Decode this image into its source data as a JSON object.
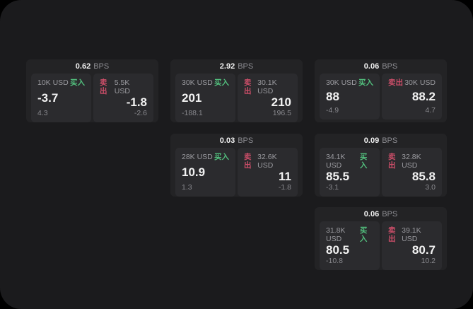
{
  "labels": {
    "bps_unit": "BPS",
    "buy": "买入",
    "sell": "卖出"
  },
  "colors": {
    "page_bg": "#1b1b1d",
    "card_bg": "#232325",
    "panel_bg": "#2b2b2e",
    "buy_green": "#52bf7d",
    "sell_red": "#cc4e69",
    "text_primary": "#f2f2f2",
    "text_muted": "#8d8d92"
  },
  "cards": [
    {
      "bps": "0.62",
      "buy": {
        "amount": "10K USD",
        "price": "-3.7",
        "change": "4.3"
      },
      "sell": {
        "amount": "5.5K USD",
        "price": "-1.8",
        "change": "-2.6"
      }
    },
    {
      "bps": "2.92",
      "buy": {
        "amount": "30K USD",
        "price": "201",
        "change": "-188.1"
      },
      "sell": {
        "amount": "30.1K USD",
        "price": "210",
        "change": "196.5"
      }
    },
    {
      "bps": "0.06",
      "buy": {
        "amount": "30K USD",
        "price": "88",
        "change": "-4.9"
      },
      "sell": {
        "amount": "30K USD",
        "price": "88.2",
        "change": "4.7"
      }
    },
    {
      "bps": "0.03",
      "buy": {
        "amount": "28K USD",
        "price": "10.9",
        "change": "1.3"
      },
      "sell": {
        "amount": "32.6K USD",
        "price": "11",
        "change": "-1.8"
      }
    },
    {
      "bps": "0.09",
      "buy": {
        "amount": "34.1K USD",
        "price": "85.5",
        "change": "-3.1"
      },
      "sell": {
        "amount": "32.8K USD",
        "price": "85.8",
        "change": "3.0"
      }
    },
    {
      "bps": "0.06",
      "buy": {
        "amount": "31.8K USD",
        "price": "80.5",
        "change": "-10.8"
      },
      "sell": {
        "amount": "39.1K USD",
        "price": "80.7",
        "change": "10.2"
      }
    }
  ]
}
